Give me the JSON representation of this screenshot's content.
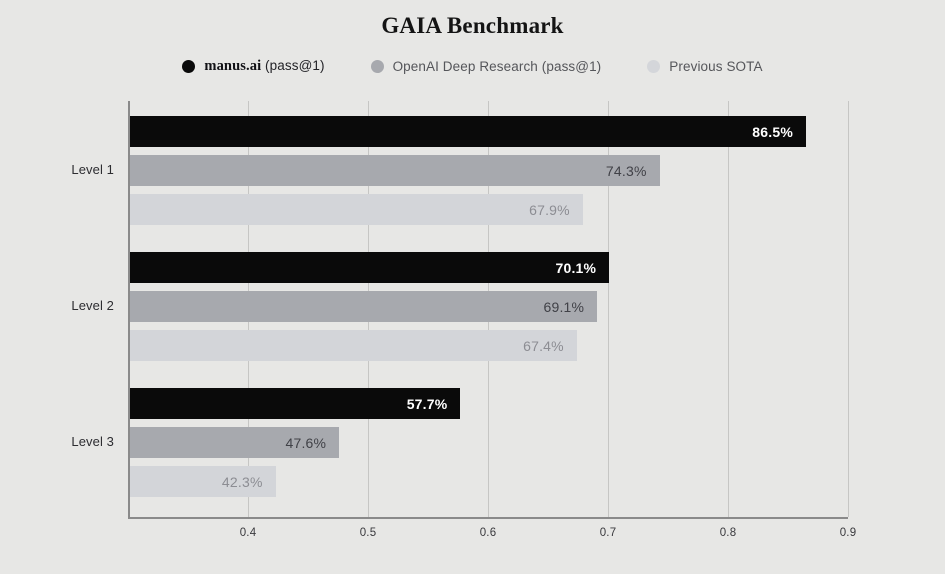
{
  "title": "GAIA Benchmark",
  "legend": {
    "items": [
      {
        "id": "manus",
        "dot_color": "#0a0a0a",
        "name": "manus.ai",
        "suffix": " (pass@1)"
      },
      {
        "id": "openai-deep-research",
        "dot_color": "#a7a9ae",
        "label": "OpenAI Deep Research (pass@1)"
      },
      {
        "id": "previous-sota",
        "dot_color": "#d4d6da",
        "label": "Previous SOTA"
      }
    ]
  },
  "chart_data": {
    "type": "bar",
    "orientation": "horizontal",
    "title": "GAIA Benchmark",
    "categories": [
      "Level 1",
      "Level 2",
      "Level 3"
    ],
    "series": [
      {
        "name": "manus.ai (pass@1)",
        "color": "#0a0a0a",
        "label_color": "#ffffff",
        "values": [
          0.865,
          0.701,
          0.577
        ],
        "labels": [
          "86.5%",
          "70.1%",
          "57.7%"
        ]
      },
      {
        "name": "OpenAI Deep Research (pass@1)",
        "color": "#a7a9ae",
        "label_color": "#404147",
        "values": [
          0.743,
          0.691,
          0.476
        ],
        "labels": [
          "74.3%",
          "69.1%",
          "47.6%"
        ]
      },
      {
        "name": "Previous SOTA",
        "color": "#d3d5d9",
        "label_color": "#8c8d93",
        "values": [
          0.679,
          0.674,
          0.423
        ],
        "labels": [
          "67.9%",
          "67.4%",
          "42.3%"
        ]
      }
    ],
    "xlim": [
      0.3,
      0.9
    ],
    "xticks": [
      "0.4",
      "0.5",
      "0.6",
      "0.7",
      "0.8",
      "0.9"
    ],
    "xtick_values": [
      0.4,
      0.5,
      0.6,
      0.7,
      0.8,
      0.9
    ],
    "grid": "vertical",
    "legend_position": "top",
    "background": "#e7e7e5"
  }
}
